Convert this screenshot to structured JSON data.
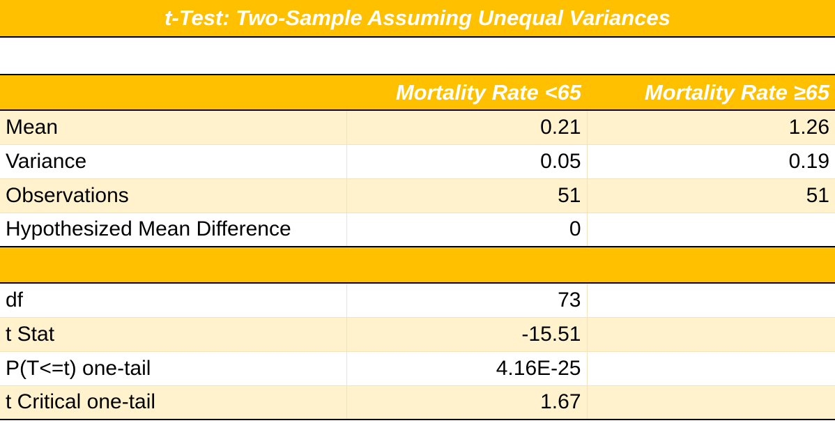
{
  "title": "t-Test: Two-Sample Assuming Unequal Variances",
  "columns": [
    "",
    "Mortality Rate <65",
    "Mortality Rate  ≥65"
  ],
  "rows_top": [
    {
      "label": "Mean",
      "v1": "0.21",
      "v2": "1.26"
    },
    {
      "label": "Variance",
      "v1": "0.05",
      "v2": "0.19"
    },
    {
      "label": "Observations",
      "v1": "51",
      "v2": "51"
    },
    {
      "label": "Hypothesized Mean Difference",
      "v1": "0",
      "v2": ""
    }
  ],
  "rows_bottom": [
    {
      "label": "df",
      "v1": "73",
      "v2": ""
    },
    {
      "label": "t Stat",
      "v1": "-15.51",
      "v2": ""
    },
    {
      "label": "P(T<=t) one-tail",
      "v1": "4.16E-25",
      "v2": ""
    },
    {
      "label": "t Critical one-tail",
      "v1": "1.67",
      "v2": ""
    }
  ],
  "colors": {
    "accent": "#ffc000",
    "band": "#fff2cc",
    "header_text": "#ffffff"
  }
}
